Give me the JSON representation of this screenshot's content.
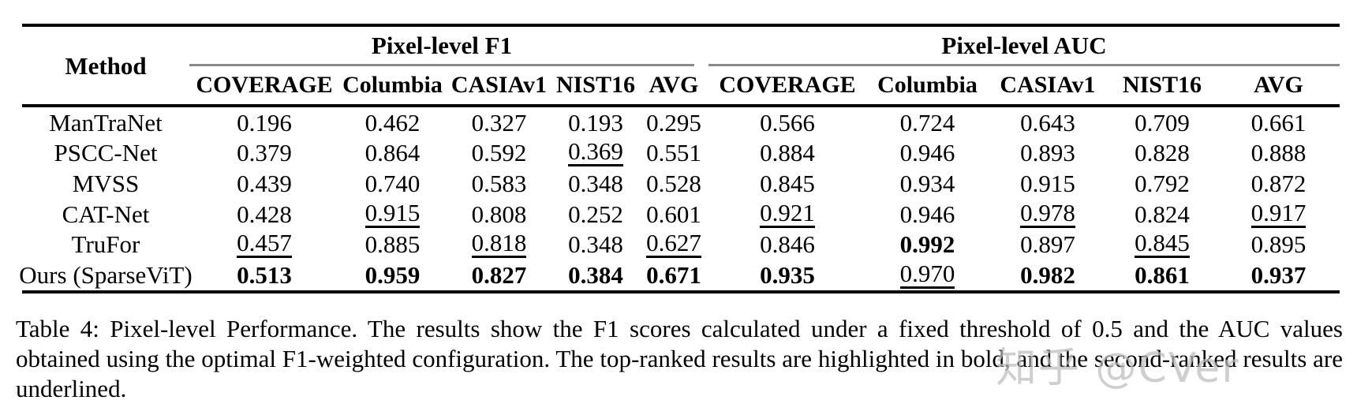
{
  "table": {
    "method_header": "Method",
    "groups": [
      {
        "label": "Pixel-level F1",
        "columns": [
          "COVERAGE",
          "Columbia",
          "CASIAv1",
          "NIST16",
          "AVG"
        ]
      },
      {
        "label": "Pixel-level AUC",
        "columns": [
          "COVERAGE",
          "Columbia",
          "CASIAv1",
          "NIST16",
          "AVG"
        ]
      }
    ],
    "rows": [
      {
        "method": "ManTraNet",
        "values": [
          "0.196",
          "0.462",
          "0.327",
          "0.193",
          "0.295",
          "0.566",
          "0.724",
          "0.643",
          "0.709",
          "0.661"
        ],
        "styles": [
          "",
          "",
          "",
          "",
          "",
          "",
          "",
          "",
          "",
          ""
        ]
      },
      {
        "method": "PSCC-Net",
        "values": [
          "0.379",
          "0.864",
          "0.592",
          "0.369",
          "0.551",
          "0.884",
          "0.946",
          "0.893",
          "0.828",
          "0.888"
        ],
        "styles": [
          "",
          "",
          "",
          "underline",
          "",
          "",
          "",
          "",
          "",
          ""
        ]
      },
      {
        "method": "MVSS",
        "values": [
          "0.439",
          "0.740",
          "0.583",
          "0.348",
          "0.528",
          "0.845",
          "0.934",
          "0.915",
          "0.792",
          "0.872"
        ],
        "styles": [
          "",
          "",
          "",
          "",
          "",
          "",
          "",
          "",
          "",
          ""
        ]
      },
      {
        "method": "CAT-Net",
        "values": [
          "0.428",
          "0.915",
          "0.808",
          "0.252",
          "0.601",
          "0.921",
          "0.946",
          "0.978",
          "0.824",
          "0.917"
        ],
        "styles": [
          "",
          "underline",
          "",
          "",
          "",
          "underline",
          "",
          "underline",
          "",
          "underline"
        ]
      },
      {
        "method": "TruFor",
        "values": [
          "0.457",
          "0.885",
          "0.818",
          "0.348",
          "0.627",
          "0.846",
          "0.992",
          "0.897",
          "0.845",
          "0.895"
        ],
        "styles": [
          "underline",
          "",
          "underline",
          "",
          "underline",
          "",
          "bold",
          "",
          "underline",
          ""
        ]
      },
      {
        "method": "Ours (SparseViT)",
        "values": [
          "0.513",
          "0.959",
          "0.827",
          "0.384",
          "0.671",
          "0.935",
          "0.970",
          "0.982",
          "0.861",
          "0.937"
        ],
        "styles": [
          "bold",
          "bold",
          "bold",
          "bold",
          "bold",
          "bold",
          "underline",
          "bold",
          "bold",
          "bold"
        ]
      }
    ]
  },
  "caption": {
    "text": "Table 4: Pixel-level Performance. The results show the F1 scores calculated under a fixed threshold of 0.5 and the AUC values obtained using the optimal F1-weighted configuration. The top-ranked results are highlighted in bold, and the second-ranked results are underlined."
  },
  "watermark": "知乎 @CVer",
  "colors": {
    "rule": "#000000",
    "cmidrule": "#8a8a8a",
    "watermark": "#bdbdbd"
  }
}
